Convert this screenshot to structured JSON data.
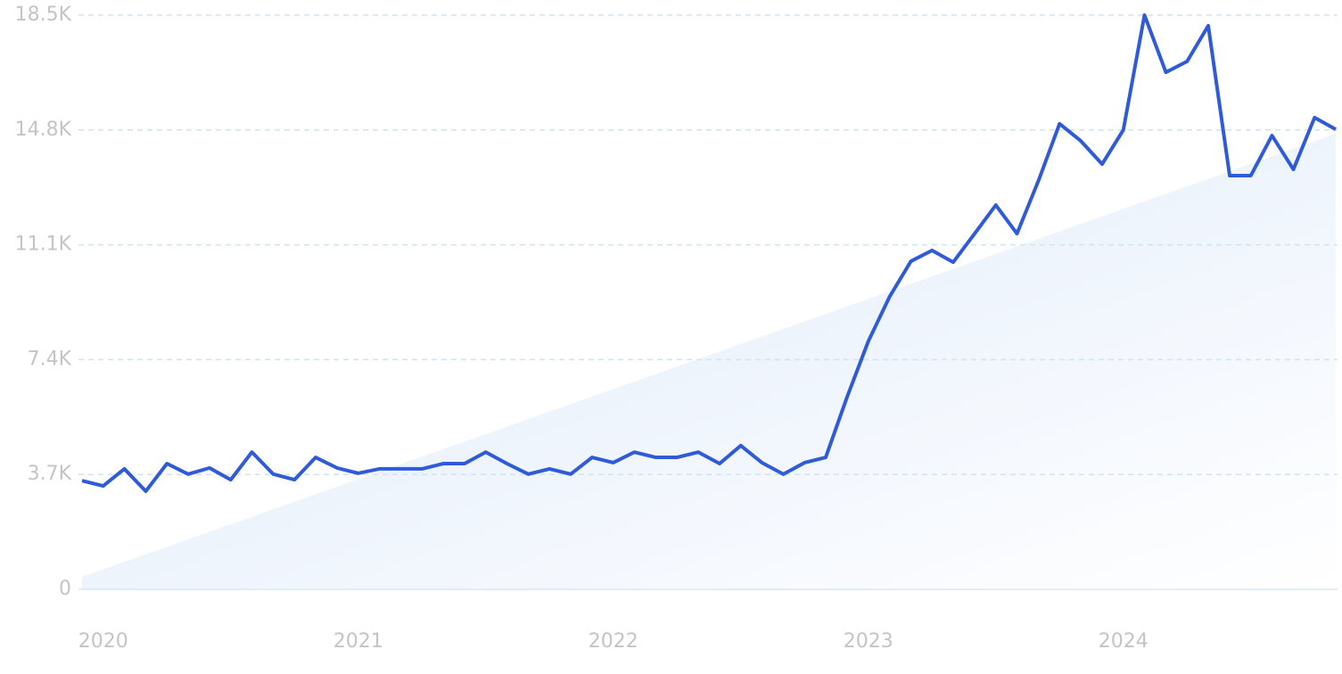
{
  "chart_data": {
    "type": "line",
    "x": [
      2019.917,
      2020.0,
      2020.083,
      2020.167,
      2020.25,
      2020.333,
      2020.417,
      2020.5,
      2020.583,
      2020.667,
      2020.75,
      2020.833,
      2020.917,
      2021.0,
      2021.083,
      2021.167,
      2021.25,
      2021.333,
      2021.417,
      2021.5,
      2021.583,
      2021.667,
      2021.75,
      2021.833,
      2021.917,
      2022.0,
      2022.083,
      2022.167,
      2022.25,
      2022.333,
      2022.417,
      2022.5,
      2022.583,
      2022.667,
      2022.75,
      2022.833,
      2022.917,
      2023.0,
      2023.083,
      2023.167,
      2023.25,
      2023.333,
      2023.417,
      2023.5,
      2023.583,
      2023.667,
      2023.75,
      2023.833,
      2023.917,
      2024.0,
      2024.083,
      2024.167,
      2024.25,
      2024.333,
      2024.417,
      2024.5,
      2024.583,
      2024.667,
      2024.75,
      2024.833
    ],
    "series": [
      {
        "color": "#2f5bdb",
        "values": [
          3500,
          3330,
          3880,
          3160,
          4050,
          3710,
          3910,
          3530,
          4420,
          3710,
          3530,
          4250,
          3910,
          3740,
          3880,
          3880,
          3880,
          4050,
          4050,
          4420,
          4050,
          3710,
          3880,
          3710,
          4250,
          4080,
          4420,
          4250,
          4250,
          4420,
          4050,
          4630,
          4080,
          3710,
          4080,
          4250,
          6200,
          7990,
          9420,
          10570,
          10920,
          10540,
          11460,
          12380,
          11460,
          13160,
          15000,
          14450,
          13700,
          14800,
          18500,
          16660,
          17010,
          18160,
          13330,
          13330,
          14620,
          13530,
          15200,
          14820
        ]
      }
    ],
    "xlim": [
      2019.917,
      2024.833
    ],
    "xticks": [
      2020,
      2021,
      2022,
      2023,
      2024
    ],
    "ylim": [
      0,
      18500
    ],
    "yticks": [
      0,
      {
        "value": 3700,
        "label": "3.7K"
      },
      {
        "value": 7400,
        "label": "7.4K"
      },
      {
        "value": 11100,
        "label": "11.1K"
      },
      {
        "value": 14800,
        "label": "14.8K"
      },
      {
        "value": 18500,
        "label": "18.5K"
      }
    ],
    "grid": true
  }
}
